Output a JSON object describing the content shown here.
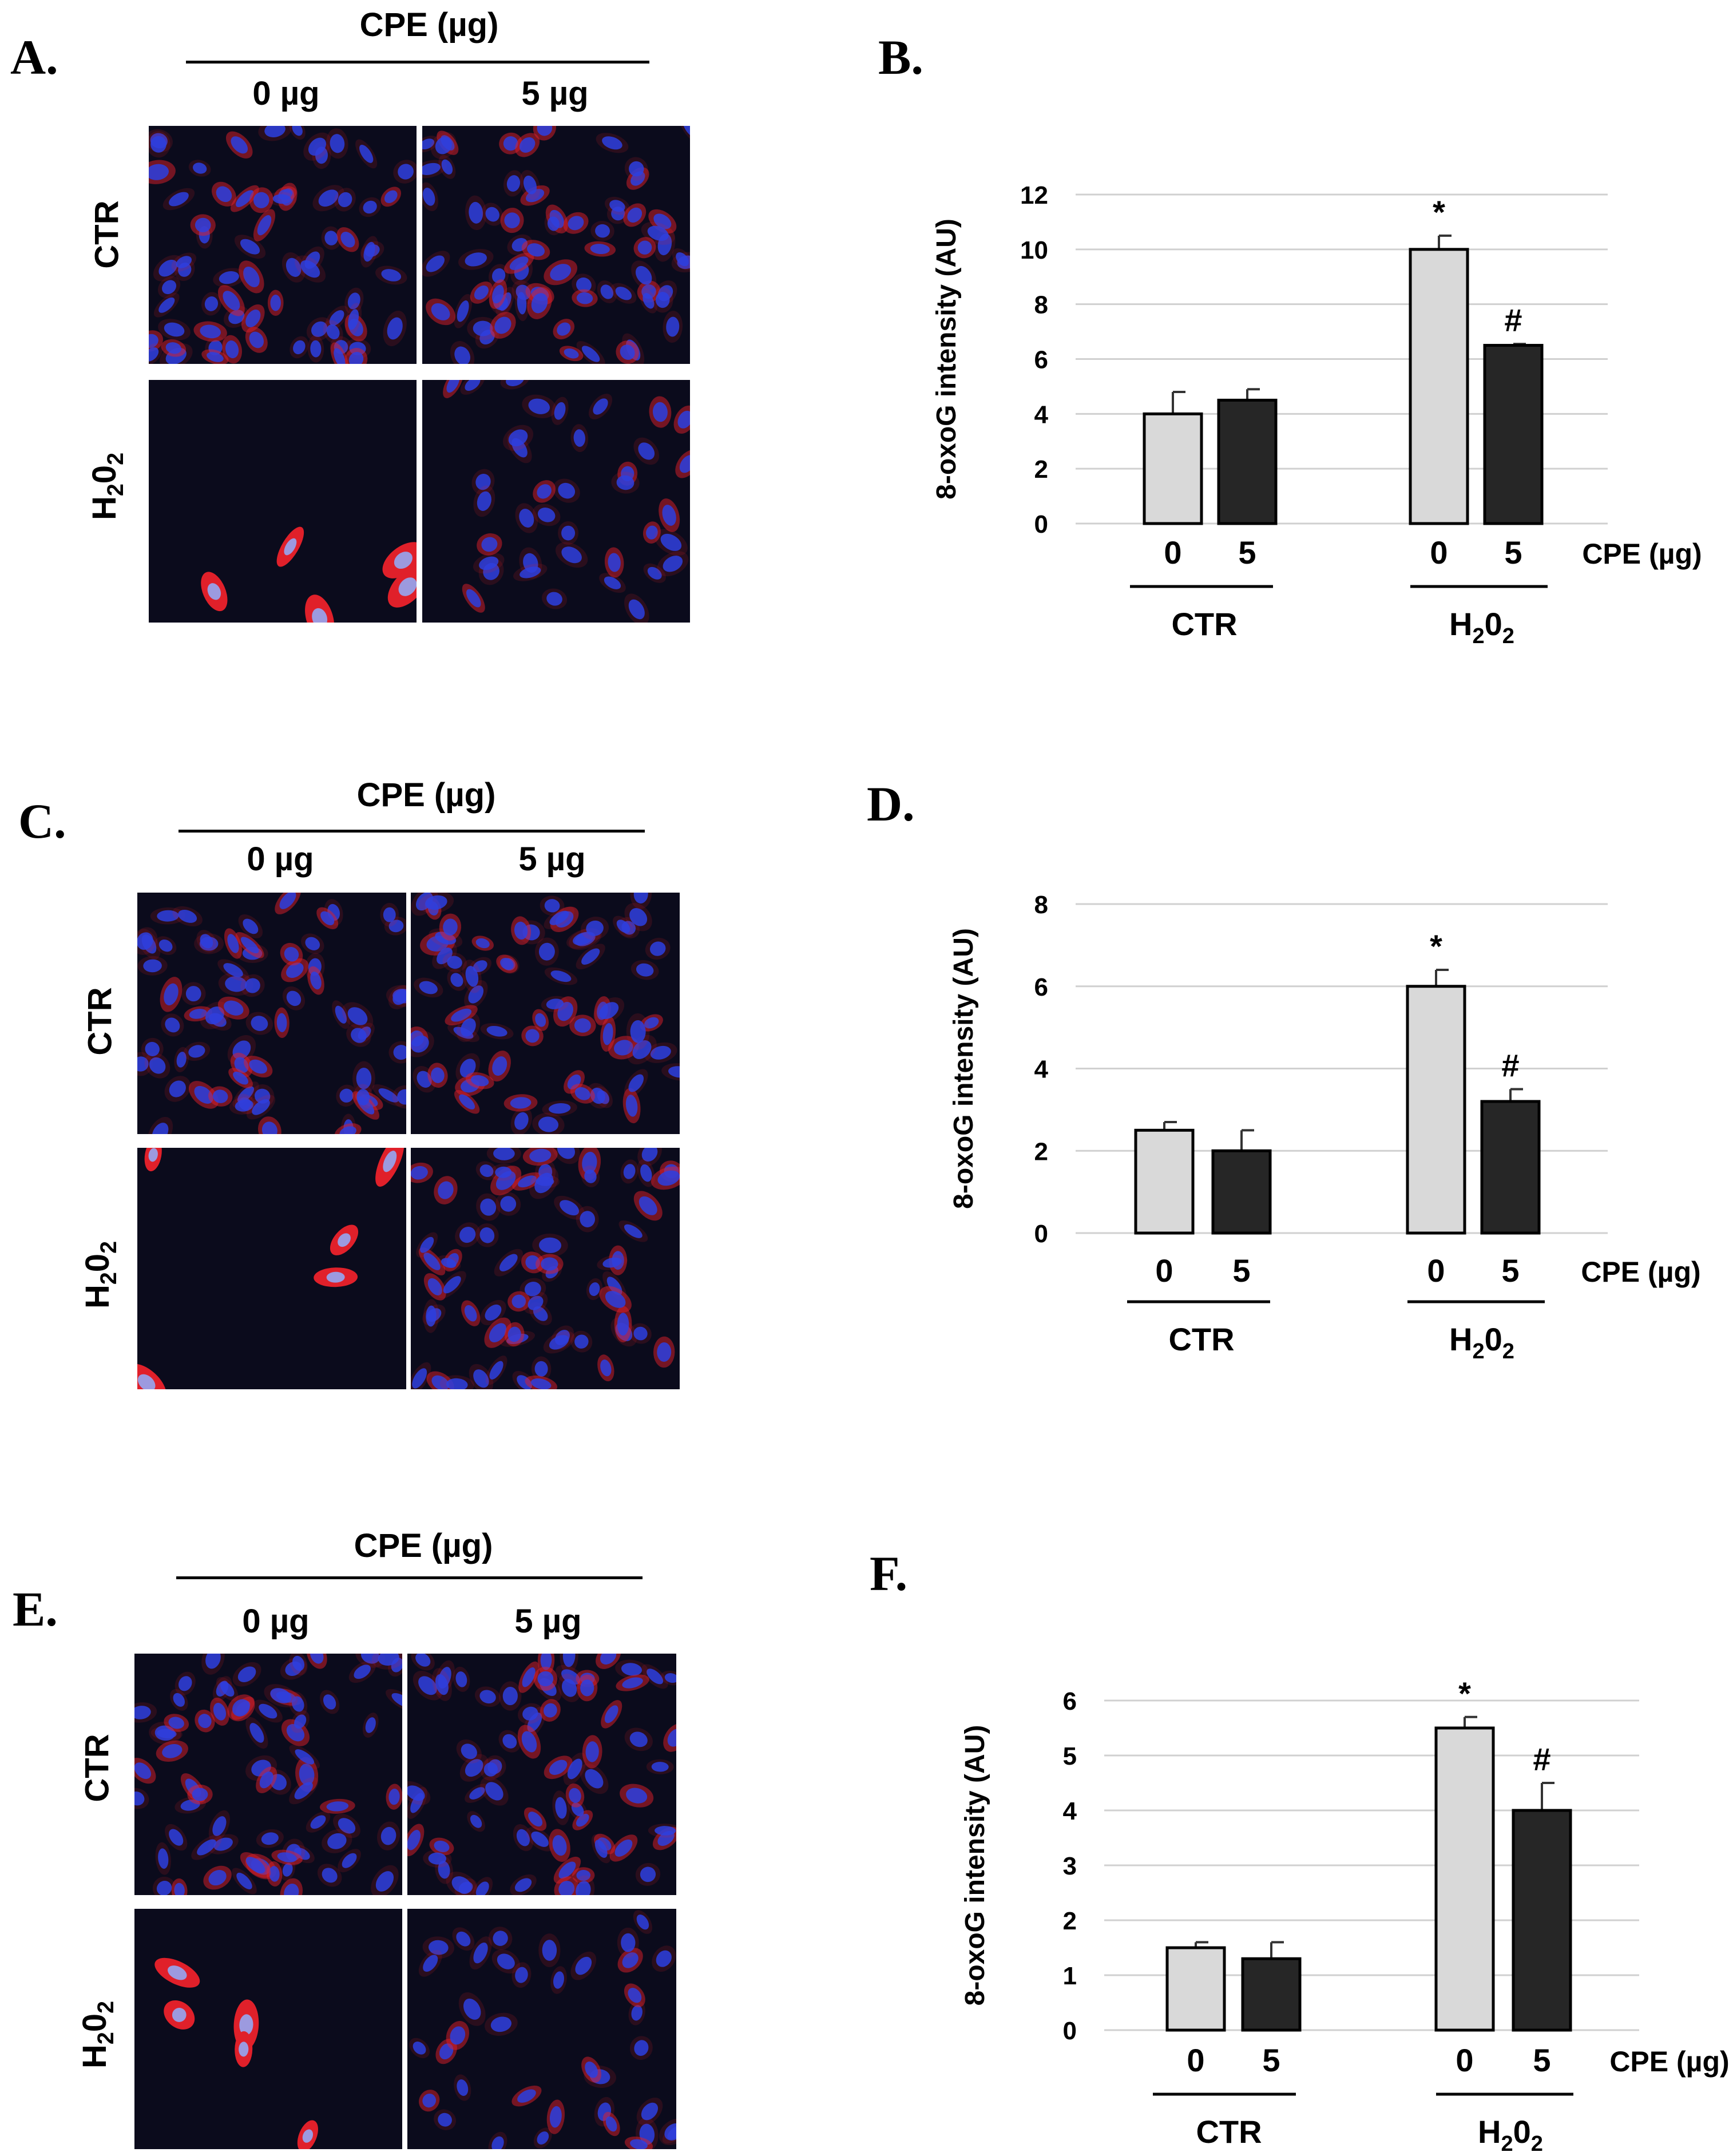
{
  "figure": {
    "panels": {
      "A": {
        "letter": "A.",
        "header": "CPE (µg)",
        "cols": [
          "0 µg",
          "5 µg"
        ],
        "rows": [
          "CTR",
          "H",
          "2",
          "0",
          "2"
        ]
      },
      "C": {
        "letter": "C.",
        "header": "CPE (µg)",
        "cols": [
          "0 µg",
          "5 µg"
        ],
        "rows": [
          "CTR",
          "H",
          "2",
          "0",
          "2"
        ]
      },
      "E": {
        "letter": "E.",
        "header": "CPE (µg)",
        "cols": [
          "0 µg",
          "5 µg"
        ],
        "rows": [
          "CTR",
          "H",
          "2",
          "0",
          "2"
        ]
      },
      "B_letter": "B.",
      "D_letter": "D.",
      "F_letter": "F."
    }
  },
  "colors": {
    "bar_light": "#d9d9d9",
    "bar_dark": "#262626",
    "grid": "#d0d0d0",
    "nucleus": "#2b3fe0",
    "stain": "#e0202a"
  },
  "chart_data": [
    {
      "panel": "B",
      "type": "bar",
      "ylabel": "8-oxoG intensity (AU)",
      "ylim": [
        0,
        12
      ],
      "yticks": [
        0,
        2,
        4,
        6,
        8,
        10,
        12
      ],
      "x_title": "CPE (µg)",
      "groups": [
        "CTR",
        "H202"
      ],
      "group_labels": [
        {
          "main": "CTR"
        },
        {
          "main": "H",
          "sub1": "2",
          "mid": "0",
          "sub2": "2"
        }
      ],
      "categories": [
        "0",
        "5"
      ],
      "series": [
        {
          "values": [
            4.0,
            10.0
          ],
          "errors": [
            0.8,
            0.5
          ],
          "annotations": [
            "",
            "*"
          ]
        },
        {
          "values": [
            4.5,
            6.5
          ],
          "errors": [
            0.4,
            0.05
          ],
          "annotations": [
            "",
            "#"
          ]
        }
      ]
    },
    {
      "panel": "D",
      "type": "bar",
      "ylabel": "8-oxoG intensity (AU)",
      "ylim": [
        0,
        8
      ],
      "yticks": [
        0,
        2,
        4,
        6,
        8
      ],
      "x_title": "CPE (µg)",
      "groups": [
        "CTR",
        "H202"
      ],
      "group_labels": [
        {
          "main": "CTR"
        },
        {
          "main": "H",
          "sub1": "2",
          "mid": "0",
          "sub2": "2"
        }
      ],
      "categories": [
        "0",
        "5"
      ],
      "series": [
        {
          "values": [
            2.5,
            6.0
          ],
          "errors": [
            0.2,
            0.4
          ],
          "annotations": [
            "",
            "*"
          ]
        },
        {
          "values": [
            2.0,
            3.2
          ],
          "errors": [
            0.5,
            0.3
          ],
          "annotations": [
            "",
            "#"
          ]
        }
      ]
    },
    {
      "panel": "F",
      "type": "bar",
      "ylabel": "8-oxoG intensity (AU)",
      "ylim": [
        0,
        6
      ],
      "yticks": [
        0,
        1,
        2,
        3,
        4,
        5,
        6
      ],
      "x_title": "CPE (µg)",
      "groups": [
        "CTR",
        "H202"
      ],
      "group_labels": [
        {
          "main": "CTR"
        },
        {
          "main": "H",
          "sub1": "2",
          "mid": "0",
          "sub2": "2"
        }
      ],
      "categories": [
        "0",
        "5"
      ],
      "series": [
        {
          "values": [
            1.5,
            5.5
          ],
          "errors": [
            0.1,
            0.2
          ],
          "annotations": [
            "",
            "*"
          ]
        },
        {
          "values": [
            1.3,
            4.0
          ],
          "errors": [
            0.3,
            0.5
          ],
          "annotations": [
            "",
            "#"
          ]
        }
      ]
    }
  ]
}
